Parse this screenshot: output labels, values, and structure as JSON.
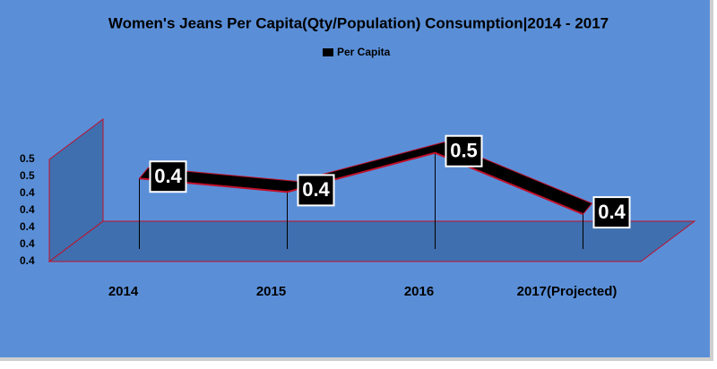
{
  "chart_data": {
    "type": "line",
    "title": "Women's Jeans Per Capita(Qty/Population) Consumption|2014 - 2017",
    "categories": [
      "2014",
      "2015",
      "2016",
      "2017(Projected)"
    ],
    "series": [
      {
        "name": "Per Capita",
        "color": "#000000",
        "edge_color": "#c0102a",
        "values": [
          0.437,
          0.429,
          0.452,
          0.416
        ],
        "value_labels": [
          "0.4",
          "0.4",
          "0.5",
          "0.4"
        ]
      }
    ],
    "ylim": [
      0.4,
      0.46
    ],
    "yticks": [
      {
        "value": 0.4,
        "label": "0.4"
      },
      {
        "value": 0.41,
        "label": "0.4"
      },
      {
        "value": 0.42,
        "label": "0.4"
      },
      {
        "value": 0.43,
        "label": "0.4"
      },
      {
        "value": 0.44,
        "label": "0.4"
      },
      {
        "value": 0.45,
        "label": "0.5"
      },
      {
        "value": 0.46,
        "label": "0.5"
      }
    ],
    "legend": "top",
    "grid": false,
    "background": "#5a8fd8",
    "floor_color": "#3f6fae"
  }
}
